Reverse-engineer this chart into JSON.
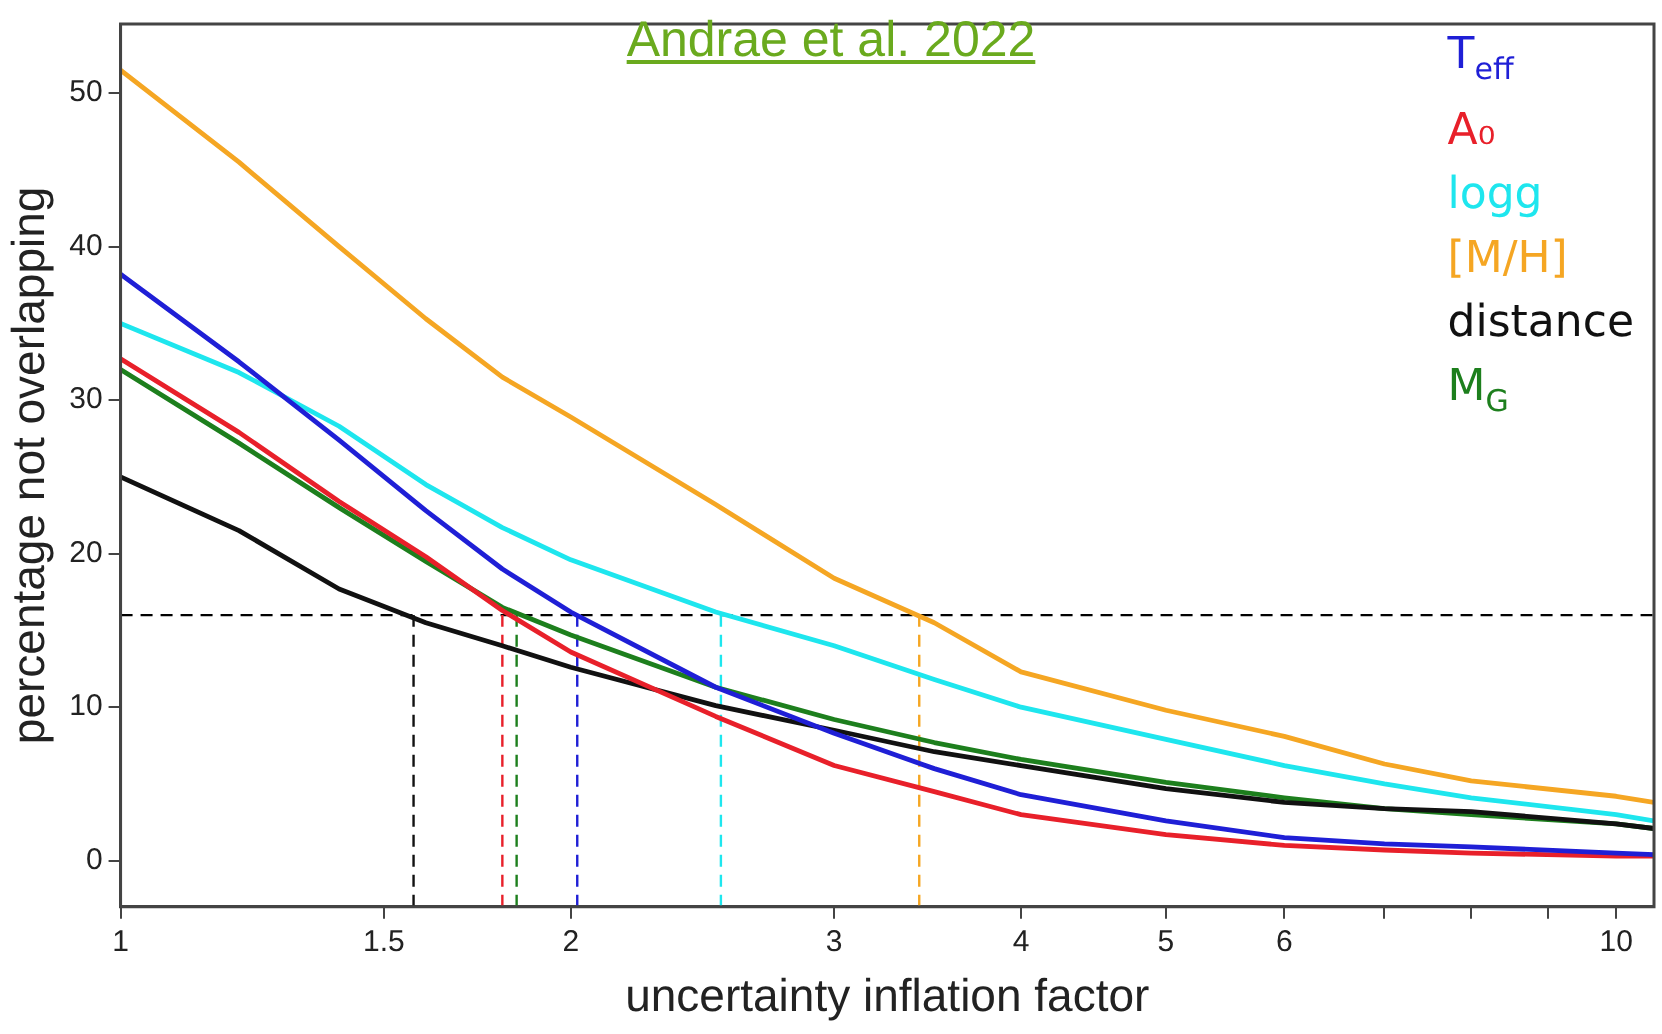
{
  "chart_data": {
    "type": "line",
    "xlabel": "uncertainty inflation factor",
    "ylabel": "percentage not overlapping",
    "annotations": [
      "Andrae et al. 2022"
    ],
    "log": "x",
    "xlim": [
      1,
      10.6
    ],
    "xticks": [
      1,
      1.5,
      2,
      3,
      4,
      5,
      6,
      {
        "value": 7,
        "label": null
      },
      {
        "value": 8,
        "label": null
      },
      {
        "value": 9,
        "label": null
      },
      10
    ],
    "ylim": [
      -3,
      54.5
    ],
    "yticks": [
      0,
      10,
      20,
      30,
      40,
      50
    ],
    "grid": false,
    "legend": "top right",
    "marker": "none",
    "line_style": "solid",
    "x": [
      1,
      1.2,
      1.4,
      1.6,
      1.8,
      2,
      2.5,
      3,
      3.5,
      4,
      5,
      6,
      7,
      8,
      10,
      10.6
    ],
    "series": [
      {
        "name": "T$_{eff}$",
        "color": "#1f1fd6",
        "values": [
          38.2,
          32.5,
          27.4,
          22.8,
          19,
          16.2,
          11.3,
          8.3,
          6,
          4.3,
          2.6,
          1.5,
          1.1,
          0.9,
          0.5,
          0.4
        ]
      },
      {
        "name": "A₀",
        "color": "#e8202a",
        "values": [
          32.7,
          27.9,
          23.4,
          19.8,
          16.3,
          13.6,
          9.4,
          6.2,
          4.5,
          3,
          1.7,
          1,
          0.7,
          0.5,
          0.3,
          0.3
        ]
      },
      {
        "name": "logg",
        "color": "#1ee6ee",
        "values": [
          35,
          31.8,
          28.3,
          24.5,
          21.7,
          19.6,
          16.2,
          14,
          11.8,
          10,
          7.9,
          6.2,
          5,
          4.1,
          3,
          2.6
        ]
      },
      {
        "name": "[M/H]",
        "color": "#f5a623",
        "values": [
          51.5,
          45.5,
          40,
          35.3,
          31.5,
          28.9,
          23.2,
          18.4,
          15.5,
          12.3,
          9.8,
          8.1,
          6.3,
          5.2,
          4.2,
          3.8
        ]
      },
      {
        "name": "distance",
        "color": "#111111",
        "values": [
          25,
          21.5,
          17.7,
          15.5,
          14,
          12.6,
          10.1,
          8.5,
          7.1,
          6.2,
          4.7,
          3.8,
          3.4,
          3.2,
          2.4,
          2.1
        ]
      },
      {
        "name": "M$_{G}$",
        "color": "#1d7f1d",
        "values": [
          32,
          27.2,
          23,
          19.5,
          16.5,
          14.7,
          11.3,
          9.2,
          7.7,
          6.6,
          5.1,
          4.1,
          3.4,
          3,
          2.4,
          2.1
        ]
      }
    ],
    "ref_lines": [
      {
        "axis": "y",
        "value": 16,
        "color": "#000000",
        "line_style": "dashed"
      },
      {
        "axis": "x",
        "value": 1.57,
        "color": "#111111",
        "line_style": "dashed"
      },
      {
        "axis": "x",
        "value": 1.8,
        "color": "#e8202a",
        "line_style": "dashed"
      },
      {
        "axis": "x",
        "value": 1.84,
        "color": "#1d7f1d",
        "line_style": "dashed"
      },
      {
        "axis": "x",
        "value": 2.02,
        "color": "#1f1fd6",
        "line_style": "dashed"
      },
      {
        "axis": "x",
        "value": 2.52,
        "color": "#1ee6ee",
        "line_style": "dashed"
      },
      {
        "axis": "x",
        "value": 3.42,
        "color": "#f5a623",
        "line_style": "dashed"
      }
    ]
  }
}
